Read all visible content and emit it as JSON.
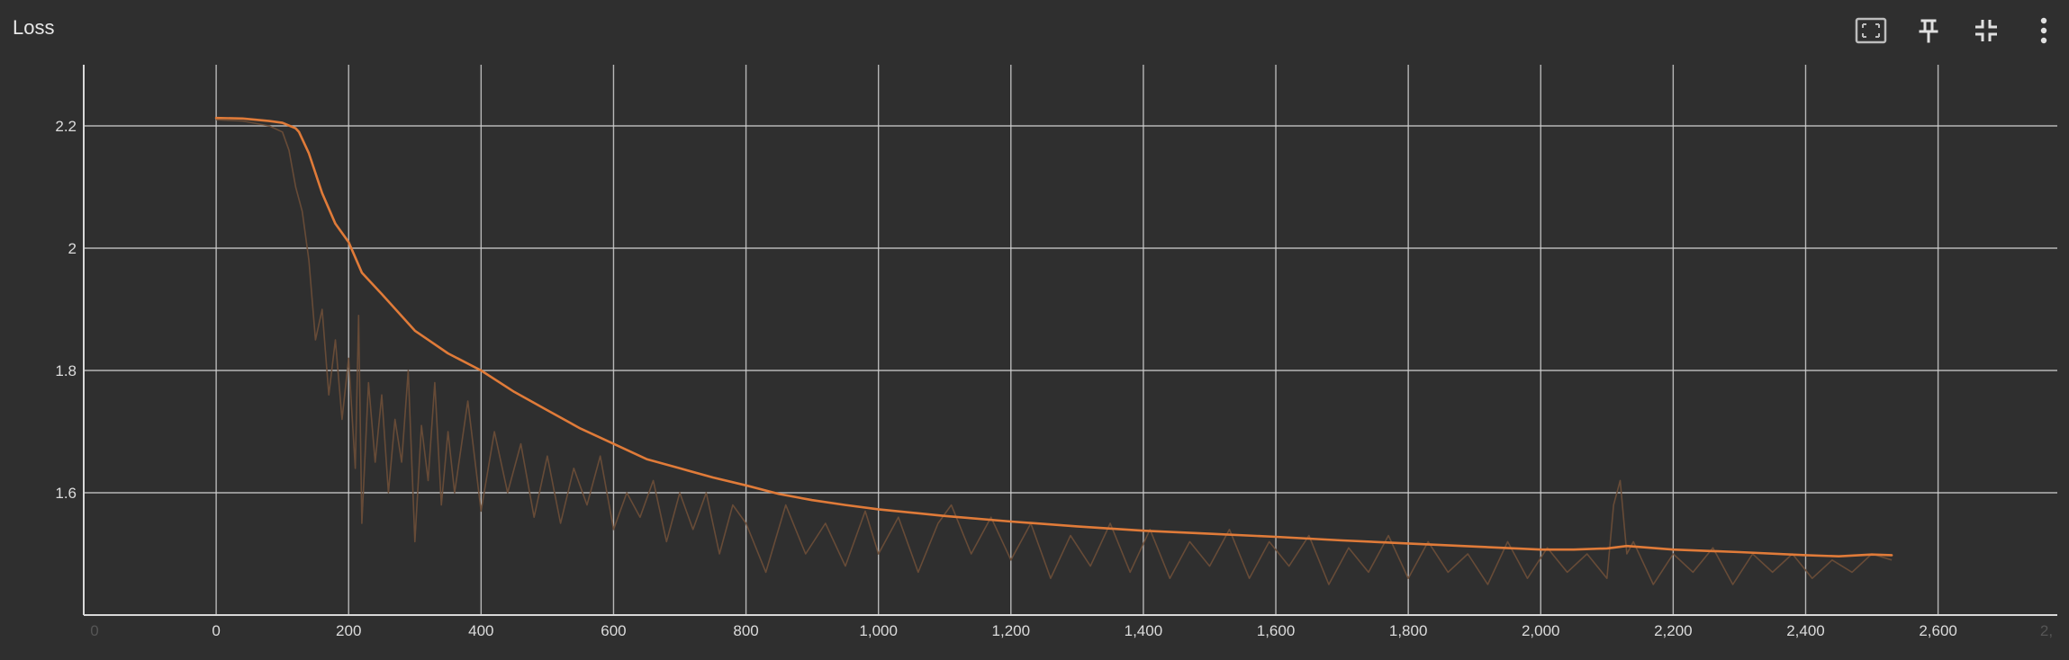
{
  "card": {
    "title": "Loss"
  },
  "toolbar": {
    "buttons": [
      {
        "name": "fit-domain-button",
        "icon": "fit-domain-icon"
      },
      {
        "name": "pin-button",
        "icon": "pin-icon"
      },
      {
        "name": "collapse-button",
        "icon": "collapse-icon"
      },
      {
        "name": "more-menu-button",
        "icon": "more-vertical-icon"
      }
    ]
  },
  "colors": {
    "background": "#2f2f2f",
    "grid": "#cfcfcf",
    "smoothed_line": "#e07b39",
    "raw_line": "#6e4f38",
    "tick_text": "#dcdcdc"
  },
  "chart_data": {
    "type": "line",
    "xlim": [
      -200,
      2780
    ],
    "ylim": [
      1.4,
      2.3
    ],
    "x_ticks": [
      0,
      200,
      400,
      600,
      800,
      1000,
      1200,
      1400,
      1600,
      1800,
      2000,
      2200,
      2400,
      2600
    ],
    "x_tick_labels": [
      "0",
      "200",
      "400",
      "600",
      "800",
      "1,000",
      "1,200",
      "1,400",
      "1,600",
      "1,800",
      "2,000",
      "2,200",
      "2,400",
      "2,600"
    ],
    "x_faint_tick_labels": [
      {
        "x": -200,
        "label": "0"
      },
      {
        "x": 2780,
        "label": "2,"
      }
    ],
    "y_ticks": [
      1.6,
      1.8,
      2.0,
      2.2
    ],
    "y_tick_labels": [
      "1.6",
      "1.8",
      "2",
      "2.2"
    ],
    "grid": true,
    "series": [
      {
        "role": "smoothed",
        "x": [
          0,
          40,
          80,
          100,
          120,
          125,
          140,
          160,
          180,
          200,
          220,
          250,
          300,
          350,
          400,
          450,
          500,
          550,
          600,
          650,
          700,
          750,
          800,
          850,
          900,
          950,
          1000,
          1100,
          1200,
          1300,
          1400,
          1500,
          1600,
          1700,
          1800,
          1900,
          2000,
          2050,
          2100,
          2130,
          2200,
          2300,
          2400,
          2450,
          2500,
          2530
        ],
        "y": [
          2.213,
          2.212,
          2.208,
          2.205,
          2.196,
          2.19,
          2.155,
          2.09,
          2.04,
          2.01,
          1.96,
          1.925,
          1.865,
          1.828,
          1.8,
          1.765,
          1.735,
          1.705,
          1.68,
          1.655,
          1.64,
          1.625,
          1.612,
          1.598,
          1.588,
          1.58,
          1.573,
          1.562,
          1.553,
          1.545,
          1.538,
          1.533,
          1.528,
          1.522,
          1.517,
          1.512,
          1.507,
          1.507,
          1.509,
          1.513,
          1.507,
          1.503,
          1.498,
          1.496,
          1.499,
          1.498
        ]
      },
      {
        "role": "raw",
        "x": [
          0,
          40,
          80,
          100,
          110,
          120,
          130,
          140,
          150,
          160,
          170,
          180,
          190,
          200,
          210,
          215,
          220,
          230,
          240,
          250,
          260,
          270,
          280,
          290,
          300,
          310,
          320,
          330,
          340,
          350,
          360,
          380,
          400,
          420,
          440,
          460,
          480,
          500,
          520,
          540,
          560,
          580,
          600,
          620,
          640,
          660,
          680,
          700,
          720,
          740,
          760,
          780,
          800,
          830,
          860,
          890,
          920,
          950,
          980,
          1000,
          1030,
          1060,
          1090,
          1110,
          1140,
          1170,
          1200,
          1230,
          1260,
          1290,
          1320,
          1350,
          1380,
          1410,
          1440,
          1470,
          1500,
          1530,
          1560,
          1590,
          1620,
          1650,
          1680,
          1710,
          1740,
          1770,
          1800,
          1830,
          1860,
          1890,
          1920,
          1950,
          1980,
          2010,
          2040,
          2070,
          2100,
          2110,
          2120,
          2130,
          2140,
          2170,
          2200,
          2230,
          2260,
          2290,
          2320,
          2350,
          2380,
          2410,
          2440,
          2470,
          2500,
          2530
        ],
        "y": [
          2.21,
          2.208,
          2.2,
          2.19,
          2.16,
          2.1,
          2.06,
          1.98,
          1.85,
          1.9,
          1.76,
          1.85,
          1.72,
          1.82,
          1.64,
          1.89,
          1.55,
          1.78,
          1.65,
          1.76,
          1.6,
          1.72,
          1.65,
          1.8,
          1.52,
          1.71,
          1.62,
          1.78,
          1.58,
          1.7,
          1.6,
          1.75,
          1.57,
          1.7,
          1.6,
          1.68,
          1.56,
          1.66,
          1.55,
          1.64,
          1.58,
          1.66,
          1.54,
          1.6,
          1.56,
          1.62,
          1.52,
          1.6,
          1.54,
          1.6,
          1.5,
          1.58,
          1.55,
          1.47,
          1.58,
          1.5,
          1.55,
          1.48,
          1.57,
          1.5,
          1.56,
          1.47,
          1.55,
          1.58,
          1.5,
          1.56,
          1.49,
          1.55,
          1.46,
          1.53,
          1.48,
          1.55,
          1.47,
          1.54,
          1.46,
          1.52,
          1.48,
          1.54,
          1.46,
          1.52,
          1.48,
          1.53,
          1.45,
          1.51,
          1.47,
          1.53,
          1.46,
          1.52,
          1.47,
          1.5,
          1.45,
          1.52,
          1.46,
          1.51,
          1.47,
          1.5,
          1.46,
          1.58,
          1.62,
          1.5,
          1.52,
          1.45,
          1.5,
          1.47,
          1.51,
          1.45,
          1.5,
          1.47,
          1.5,
          1.46,
          1.49,
          1.47,
          1.5,
          1.49
        ]
      }
    ]
  }
}
